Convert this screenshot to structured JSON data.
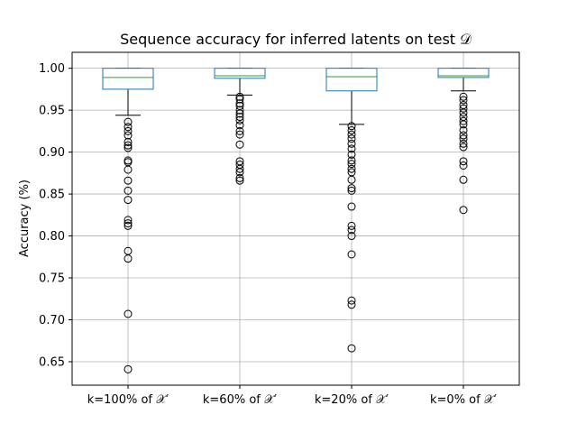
{
  "chart_data": {
    "type": "box",
    "title": "Sequence accuracy for inferred latents on test 𝒟",
    "xlabel": "",
    "ylabel": "Accuracy (%)",
    "ylim": [
      0.622,
      1.019
    ],
    "yticks": [
      "0.65",
      "0.70",
      "0.75",
      "0.80",
      "0.85",
      "0.90",
      "0.95",
      "1.00"
    ],
    "grid": true,
    "colors": {
      "box": "#1f77b4",
      "median": "#2ca02c",
      "whisker": "#000000",
      "grid": "#b0b0b0",
      "flier": "#000000"
    },
    "categories": [
      "k=100% of 𝒳′",
      "k=60% of 𝒳′",
      "k=20% of 𝒳′",
      "k=0% of 𝒳′"
    ],
    "series": [
      {
        "q1": 0.975,
        "median": 0.989,
        "q3": 1.0,
        "whisker_low": 0.944,
        "whisker_high": 1.0,
        "fliers": [
          0.936,
          0.93,
          0.925,
          0.92,
          0.912,
          0.908,
          0.905,
          0.89,
          0.888,
          0.879,
          0.866,
          0.854,
          0.843,
          0.819,
          0.815,
          0.812,
          0.782,
          0.773,
          0.707,
          0.641
        ]
      },
      {
        "q1": 0.988,
        "median": 0.991,
        "q3": 1.0,
        "whisker_low": 0.968,
        "whisker_high": 1.0,
        "fliers": [
          0.966,
          0.963,
          0.958,
          0.955,
          0.95,
          0.946,
          0.942,
          0.938,
          0.932,
          0.925,
          0.921,
          0.909,
          0.889,
          0.885,
          0.88,
          0.876,
          0.869,
          0.866
        ]
      },
      {
        "q1": 0.973,
        "median": 0.99,
        "q3": 1.0,
        "whisker_low": 0.933,
        "whisker_high": 1.0,
        "fliers": [
          0.931,
          0.926,
          0.921,
          0.916,
          0.91,
          0.904,
          0.897,
          0.89,
          0.886,
          0.88,
          0.876,
          0.867,
          0.857,
          0.854,
          0.835,
          0.812,
          0.807,
          0.8,
          0.778,
          0.723,
          0.718,
          0.666
        ]
      },
      {
        "q1": 0.989,
        "median": 0.991,
        "q3": 1.0,
        "whisker_low": 0.973,
        "whisker_high": 1.0,
        "fliers": [
          0.966,
          0.962,
          0.956,
          0.952,
          0.947,
          0.942,
          0.937,
          0.933,
          0.926,
          0.92,
          0.916,
          0.91,
          0.906,
          0.889,
          0.884,
          0.867,
          0.831
        ]
      }
    ]
  }
}
